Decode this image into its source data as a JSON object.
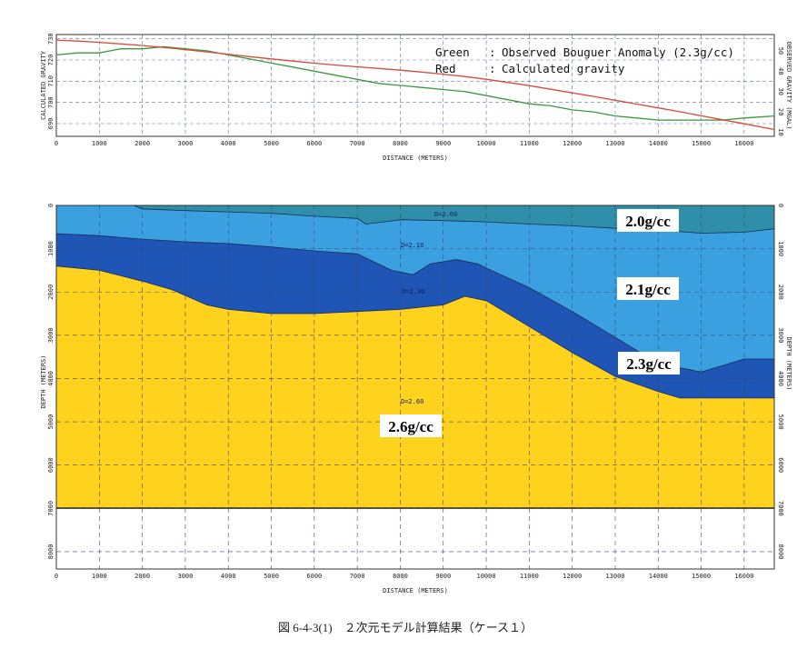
{
  "chart_data": [
    {
      "type": "line",
      "x": [
        0,
        500,
        1000,
        1500,
        2000,
        2500,
        3000,
        3500,
        4000,
        4500,
        5000,
        5500,
        6000,
        6500,
        7000,
        7500,
        8000,
        8500,
        9000,
        9500,
        10000,
        10500,
        11000,
        11500,
        12000,
        12500,
        13000,
        13500,
        14000,
        14500,
        15000,
        15500,
        16000,
        16700
      ],
      "xlabel": "DISTANCE (METERS)",
      "ylabel_left": "CALCULATED GRAVITY",
      "ylabel_right": "OBSERVED GRAVITY (MGAL)",
      "xlim": [
        0,
        16700
      ],
      "ylim_left": [
        684,
        732
      ],
      "ylim_right": [
        8,
        58
      ],
      "xticks": [
        0,
        1000,
        2000,
        3000,
        4000,
        5000,
        6000,
        7000,
        8000,
        9000,
        10000,
        11000,
        12000,
        13000,
        14000,
        15000,
        16000
      ],
      "yticks_left": [
        690,
        700,
        710,
        720,
        730
      ],
      "yticks_right": [
        10,
        20,
        30,
        40,
        50
      ],
      "grid": true,
      "legend_position": "top-right",
      "legend": [
        {
          "label": "Green",
          "text": "Observed Bouguer Anomaly (2.3g/cc)"
        },
        {
          "label": "Red",
          "text": "Calculated gravity"
        }
      ],
      "series": [
        {
          "name": "Observed Bouguer Anomaly (2.3g/cc)",
          "color": "#3a9a3a",
          "axis": "right",
          "values": [
            48,
            49,
            49,
            51,
            51,
            52,
            51,
            50,
            48,
            46,
            44,
            42,
            40,
            38,
            36,
            34,
            33,
            32,
            31,
            30,
            28,
            26,
            24,
            23,
            21,
            20,
            18,
            17,
            16,
            16,
            16,
            16,
            17,
            18
          ]
        },
        {
          "name": "Calculated gravity",
          "color": "#d84a3a",
          "axis": "left",
          "values": [
            729.4,
            728.9,
            728.3,
            727.6,
            726.8,
            725.9,
            724.9,
            723.8,
            722.7,
            721.6,
            720.5,
            719.5,
            718.5,
            717.6,
            716.8,
            716.0,
            715.2,
            714.3,
            713.3,
            712.2,
            710.9,
            709.4,
            707.9,
            706.2,
            704.5,
            702.8,
            701.0,
            699.2,
            697.4,
            695.6,
            693.7,
            691.8,
            689.9,
            687.2
          ]
        }
      ]
    },
    {
      "type": "area",
      "xlabel": "DISTANCE (METERS)",
      "ylabel": "DEPTH (METERS)",
      "xlim": [
        0,
        16700
      ],
      "ylim": [
        8400,
        0
      ],
      "xticks": [
        0,
        1000,
        2000,
        3000,
        4000,
        5000,
        6000,
        7000,
        8000,
        9000,
        10000,
        11000,
        12000,
        13000,
        14000,
        15000,
        16000
      ],
      "yticks": [
        0,
        1000,
        2000,
        3000,
        4000,
        5000,
        6000,
        7000,
        8000
      ],
      "grid": true,
      "model_bottom": 7000,
      "layers": [
        {
          "label": "2.0g/cc",
          "contour_label": "D=2.00",
          "color": "#2f8fa8"
        },
        {
          "label": "2.1g/cc",
          "contour_label": "D=2.10",
          "color": "#3aa0e0"
        },
        {
          "label": "2.3g/cc",
          "contour_label": "D=2.30",
          "color": "#1f55b4"
        },
        {
          "label": "2.6g/cc",
          "contour_label": "D=2.60",
          "color": "#ffd21e"
        }
      ],
      "boundaries": [
        {
          "name": "base of 2.0g/cc",
          "x": [
            1800,
            2000,
            3000,
            5000,
            6000,
            7000,
            7200,
            7700,
            8000,
            9000,
            10000,
            11000,
            12000,
            13000,
            14000,
            15000,
            16000,
            16700
          ],
          "depth": [
            0,
            80,
            120,
            180,
            250,
            300,
            430,
            370,
            330,
            350,
            380,
            430,
            470,
            530,
            570,
            640,
            620,
            540
          ]
        },
        {
          "name": "base of 2.1g/cc",
          "x": [
            0,
            1000,
            2000,
            3000,
            4000,
            5000,
            6000,
            7000,
            7800,
            8300,
            8700,
            9300,
            9800,
            10000,
            11000,
            12000,
            13000,
            14000,
            15000,
            16000,
            16700
          ],
          "depth": [
            650,
            700,
            780,
            840,
            880,
            960,
            1050,
            1120,
            1500,
            1600,
            1350,
            1250,
            1350,
            1450,
            1900,
            2450,
            3050,
            3650,
            3850,
            3550,
            3550
          ]
        },
        {
          "name": "base of 2.3g/cc",
          "x": [
            0,
            1000,
            2000,
            2700,
            3500,
            4000,
            5000,
            6000,
            7000,
            8000,
            9000,
            9500,
            10000,
            11000,
            12000,
            13000,
            14000,
            14500,
            15000,
            16000,
            16700
          ],
          "depth": [
            1400,
            1500,
            1750,
            1950,
            2300,
            2400,
            2500,
            2500,
            2450,
            2400,
            2300,
            2100,
            2200,
            2800,
            3400,
            3950,
            4300,
            4450,
            4450,
            4450,
            4450
          ]
        }
      ]
    }
  ],
  "caption": "図 6-4-3(1)　２次元モデル計算結果（ケース１）"
}
